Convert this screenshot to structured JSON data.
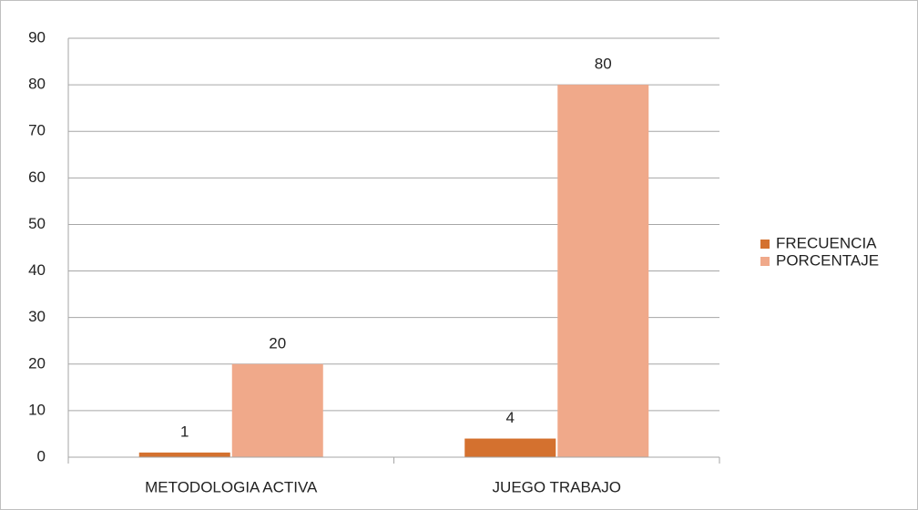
{
  "chart_data": {
    "type": "bar",
    "categories": [
      "METODOLOGIA ACTIVA",
      "JUEGO TRABAJO"
    ],
    "series": [
      {
        "name": "FRECUENCIA",
        "color": "#d4712f",
        "values": [
          1,
          4
        ]
      },
      {
        "name": "PORCENTAJE",
        "color": "#f0a98a",
        "values": [
          20,
          80
        ]
      }
    ],
    "ylim": [
      0,
      90
    ],
    "yticks": [
      0,
      10,
      20,
      30,
      40,
      50,
      60,
      70,
      80,
      90
    ],
    "grid": true,
    "legend": "right"
  }
}
